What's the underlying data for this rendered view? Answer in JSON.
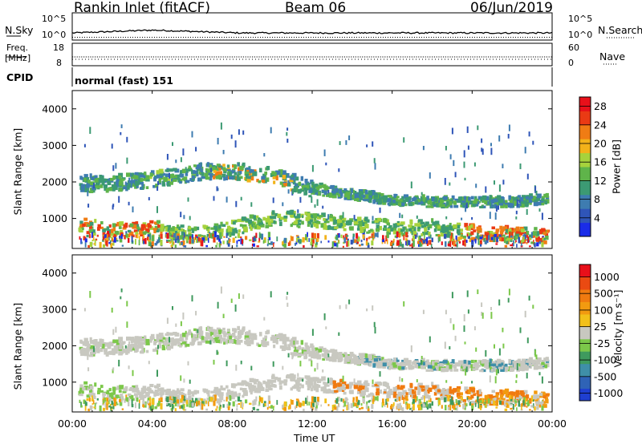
{
  "header": {
    "station": "Rankin Inlet (fitACF)",
    "beam": "Beam 06",
    "date": "06/Jun/2019"
  },
  "sky_panel": {
    "left_label": "N.Sky",
    "right_label": "N.Search",
    "left_ticks": [
      "10^5",
      "10^0"
    ],
    "right_ticks": [
      "10^5",
      "10^0"
    ]
  },
  "freq_panel": {
    "left_label_1": "Freq.",
    "left_label_2": "[MHz]",
    "right_label": "Nave",
    "left_ticks": [
      "18",
      "8"
    ],
    "right_ticks": [
      "60",
      "0"
    ]
  },
  "cpid_panel": {
    "label": "CPID",
    "mode": "normal (fast) 151"
  },
  "colors": {
    "power_scale": [
      "#1a2ce8",
      "#2f55b8",
      "#3e7cb0",
      "#3c9a73",
      "#5fb44a",
      "#a6d23c",
      "#f2b21a",
      "#f07c14",
      "#ea3a14",
      "#e8101a"
    ],
    "velocity_scale": [
      "#1f3fd0",
      "#2f63b6",
      "#3f8fa8",
      "#3f9a5e",
      "#7cc84a",
      "#c8c8c0",
      "#f2c01a",
      "#f29a10",
      "#f07a10",
      "#ea4a12",
      "#e8101a"
    ]
  },
  "chart_data": [
    {
      "type": "heatmap",
      "title": "",
      "xlabel": "Time UT",
      "ylabel": "Slant Range [km]",
      "x_ticks": [
        "00:00",
        "04:00",
        "08:00",
        "12:00",
        "16:00",
        "20:00",
        "00:00"
      ],
      "y_ticks": [
        "1000",
        "2000",
        "3000",
        "4000"
      ],
      "ylim": [
        180,
        4500
      ],
      "xlim_hours": [
        0,
        24
      ],
      "colorbar": {
        "label": "Power [dB]",
        "ticks": [
          "4",
          "8",
          "12",
          "16",
          "20",
          "24",
          "28"
        ],
        "range": [
          0,
          30
        ]
      },
      "bands": [
        {
          "name": "upper",
          "points": [
            [
              0.3,
              1900
            ],
            [
              2,
              1900
            ],
            [
              4,
              2000
            ],
            [
              6,
              2200
            ],
            [
              8,
              2250
            ],
            [
              10,
              2100
            ],
            [
              12,
              1750
            ],
            [
              14,
              1600
            ],
            [
              16,
              1450
            ],
            [
              18,
              1400
            ],
            [
              20,
              1400
            ],
            [
              22,
              1400
            ],
            [
              23.7,
              1500
            ]
          ]
        },
        {
          "name": "lower",
          "points": [
            [
              0.3,
              800
            ],
            [
              2,
              600
            ],
            [
              4,
              700
            ],
            [
              6,
              500
            ],
            [
              8,
              700
            ],
            [
              10,
              950
            ],
            [
              12,
              900
            ],
            [
              14,
              800
            ],
            [
              16,
              700
            ],
            [
              18,
              700
            ],
            [
              20,
              560
            ],
            [
              22,
              500
            ],
            [
              23.7,
              480
            ]
          ]
        }
      ]
    },
    {
      "type": "heatmap",
      "title": "",
      "xlabel": "Time UT",
      "ylabel": "Slant Range [km]",
      "x_ticks": [
        "00:00",
        "04:00",
        "08:00",
        "12:00",
        "16:00",
        "20:00",
        "00:00"
      ],
      "y_ticks": [
        "1000",
        "2000",
        "3000",
        "4000"
      ],
      "ylim": [
        180,
        4500
      ],
      "xlim_hours": [
        0,
        24
      ],
      "colorbar": {
        "label": "Velocity [m s⁻¹]",
        "ticks": [
          "1000",
          "500",
          "100",
          "25",
          "-25",
          "-100",
          "-500",
          "-1000"
        ],
        "range": [
          -1000,
          1000
        ]
      }
    }
  ]
}
